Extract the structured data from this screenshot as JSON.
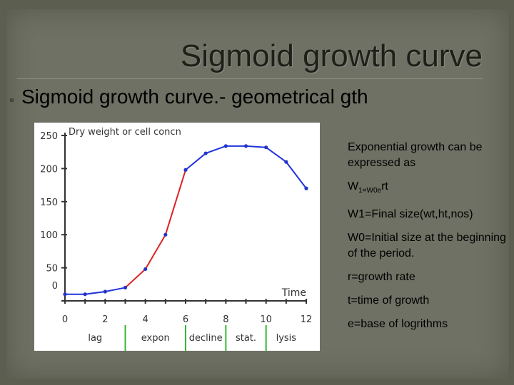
{
  "slide": {
    "title": "Sigmoid growth curve",
    "bullet": "Sigmoid growth curve.- geometrical gth"
  },
  "notes": {
    "exp_line": "Exponential growth can be expressed as",
    "formula_main": "W",
    "formula_sub": "1=W0e",
    "formula_tail": "rt",
    "w1": "W1=Final size(wt,ht,nos)",
    "w0": "W0=Initial size at the beginning of the period.",
    "r": "r=growth rate",
    "t": "t=time of growth",
    "e": "e=base of logrithms"
  },
  "chart_data": {
    "type": "line",
    "ylabel": "Dry weight or cell concn",
    "xlabel": "Time",
    "xlim": [
      0,
      12
    ],
    "ylim": [
      0,
      250
    ],
    "xticks": [
      0,
      2,
      4,
      6,
      8,
      10,
      12
    ],
    "yticks": [
      0,
      50,
      100,
      150,
      200,
      250
    ],
    "x": [
      0,
      1,
      2,
      3,
      4,
      5,
      6,
      7,
      8,
      9,
      10,
      11,
      12
    ],
    "y": [
      10,
      10,
      14,
      20,
      48,
      100,
      198,
      223,
      234,
      234,
      232,
      210,
      170
    ],
    "segments": [
      {
        "from": 0,
        "to": 3,
        "color": "#2233dd"
      },
      {
        "from": 3,
        "to": 6,
        "color": "#dd2222"
      },
      {
        "from": 6,
        "to": 12,
        "color": "#2233dd"
      }
    ],
    "marker_color": "#2233cc",
    "phases": [
      {
        "label": "lag",
        "x": 1.5
      },
      {
        "label": "expon",
        "x": 4.5
      },
      {
        "label": "decline",
        "x": 7.0
      },
      {
        "label": "stat.",
        "x": 9.0
      },
      {
        "label": "lysis",
        "x": 11.0
      }
    ],
    "phase_dividers_x": [
      3.0,
      6.0,
      8.0,
      10.0
    ],
    "divider_color": "#33bb33"
  }
}
